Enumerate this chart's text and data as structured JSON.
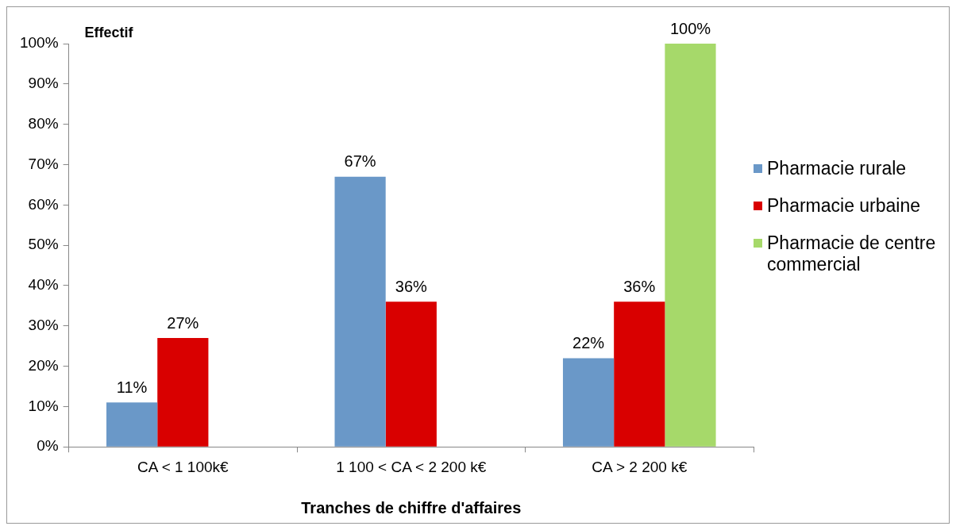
{
  "chart_data": {
    "type": "bar",
    "ylabel": "Effectif",
    "xlabel": "Tranches de chiffre d'affaires",
    "categories": [
      "CA < 1 100k€",
      "1 100 < CA < 2 200 k€",
      "CA > 2 200 k€"
    ],
    "series": [
      {
        "name": "Pharmacie rurale",
        "color": "#6a98c8",
        "values": [
          11,
          67,
          22
        ],
        "value_labels": [
          "11%",
          "67%",
          "22%"
        ]
      },
      {
        "name": "Pharmacie urbaine",
        "color": "#d90000",
        "values": [
          27,
          36,
          36
        ],
        "value_labels": [
          "27%",
          "36%",
          "36%"
        ]
      },
      {
        "name": "Pharmacie de centre commercial",
        "color": "#a6d96a",
        "values": [
          null,
          null,
          100
        ],
        "value_labels": [
          null,
          null,
          "100%"
        ]
      }
    ],
    "ylim": [
      0,
      100
    ],
    "yticks": [
      {
        "value": 0,
        "label": "0%"
      },
      {
        "value": 10,
        "label": "10%"
      },
      {
        "value": 20,
        "label": "20%"
      },
      {
        "value": 30,
        "label": "30%"
      },
      {
        "value": 40,
        "label": "40%"
      },
      {
        "value": 50,
        "label": "50%"
      },
      {
        "value": 60,
        "label": "60%"
      },
      {
        "value": 70,
        "label": "70%"
      },
      {
        "value": 80,
        "label": "80%"
      },
      {
        "value": 90,
        "label": "90%"
      },
      {
        "value": 100,
        "label": "100%"
      }
    ],
    "grid": false,
    "legend": "right"
  }
}
